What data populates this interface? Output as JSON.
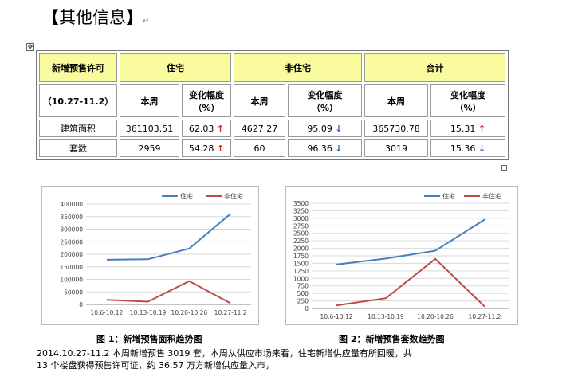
{
  "heading": "【其他信息】",
  "table": {
    "header": {
      "label": "新增预售许可",
      "groups": [
        "住宅",
        "非住宅",
        "合计"
      ]
    },
    "subheader": {
      "period": "（10.27-11.2）",
      "this_week": "本周",
      "change_line1": "变化幅度",
      "change_line2": "（%）"
    },
    "rows": [
      {
        "label": "建筑面积",
        "residential": "361103.51",
        "residential_change": "62.03",
        "residential_dir": "↑",
        "nonresidential": "4627.27",
        "nonresidential_change": "95.09",
        "nonresidential_dir": "↓",
        "total": "365730.78",
        "total_change": "15.31",
        "total_dir": "↑"
      },
      {
        "label": "套数",
        "residential": "2959",
        "residential_change": "54.28",
        "residential_dir": "↑",
        "nonresidential": "60",
        "nonresidential_change": "96.36",
        "nonresidential_dir": "↓",
        "total": "3019",
        "total_change": "15.36",
        "total_dir": "↓"
      }
    ]
  },
  "colors": {
    "residential": "#4a7ebb",
    "nonresidential": "#be4b48",
    "header_bg": "#fafa9f",
    "up": "#ee1c1c",
    "down": "#2a64b4"
  },
  "chart_data": [
    {
      "type": "line",
      "title": "",
      "categories": [
        "10.6-10.12",
        "10.13-10.19",
        "10.20-10.26",
        "10.27-11.2"
      ],
      "series": [
        {
          "name": "住宅",
          "values": [
            178000,
            180000,
            223000,
            361103.51
          ]
        },
        {
          "name": "非住宅",
          "values": [
            18000,
            11000,
            93000,
            4627.27
          ]
        }
      ],
      "yticks": [
        0,
        50000,
        100000,
        150000,
        200000,
        250000,
        300000,
        350000,
        400000
      ],
      "ylim": [
        0,
        400000
      ],
      "grid": true,
      "legend": "top"
    },
    {
      "type": "line",
      "title": "",
      "categories": [
        "10.6-10.12",
        "10.13-10.19",
        "10.20-10.26",
        "10.27-11.2"
      ],
      "series": [
        {
          "name": "住宅",
          "values": [
            1460,
            1660,
            1920,
            2959
          ]
        },
        {
          "name": "非住宅",
          "values": [
            100,
            340,
            1650,
            60
          ]
        }
      ],
      "yticks": [
        0,
        250,
        500,
        750,
        1000,
        1250,
        1500,
        1750,
        2000,
        2250,
        2500,
        2750,
        3000,
        3250,
        3500
      ],
      "ylim": [
        0,
        3500
      ],
      "grid": true,
      "legend": "top"
    }
  ],
  "captions": [
    "图 1：新增预售面积趋势图",
    "图 2：新增预售套数趋势图"
  ],
  "paragraph": {
    "line1": "2014.10.27-11.2 本周新增预售 3019 套，本周从供应市场来看，住宅新增供应量有所回暖，共",
    "line2": "13 个楼盘获得预售许可证，约 36.57 万方新增供应量入市，"
  }
}
